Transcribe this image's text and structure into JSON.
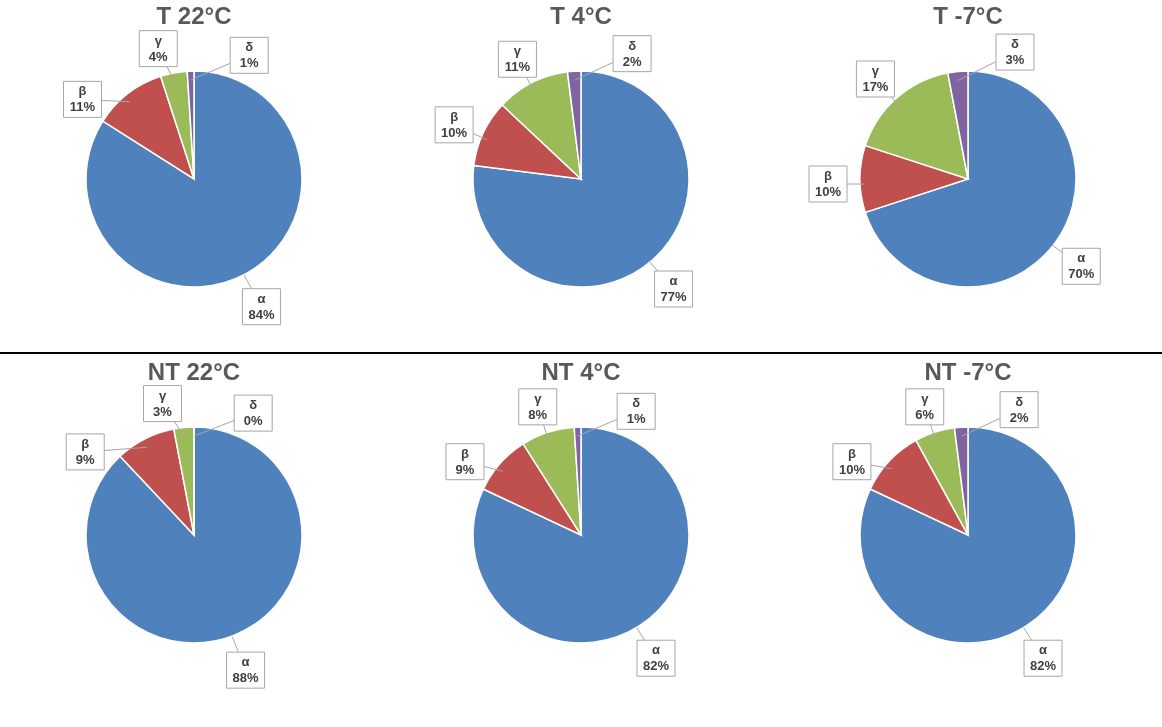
{
  "chart_data": [
    {
      "type": "pie",
      "title": "T 22°C",
      "categories": [
        "α",
        "β",
        "γ",
        "δ"
      ],
      "values": [
        84,
        11,
        4,
        1
      ],
      "value_labels": [
        "84%",
        "11%",
        "4%",
        "1%"
      ],
      "colors": [
        "#4f81bd",
        "#c0504d",
        "#9bbb59",
        "#8064a2"
      ]
    },
    {
      "type": "pie",
      "title": "T 4°C",
      "categories": [
        "α",
        "β",
        "γ",
        "δ"
      ],
      "values": [
        77,
        10,
        11,
        2
      ],
      "value_labels": [
        "77%",
        "10%",
        "11%",
        "2%"
      ],
      "colors": [
        "#4f81bd",
        "#c0504d",
        "#9bbb59",
        "#8064a2"
      ]
    },
    {
      "type": "pie",
      "title": "T -7°C",
      "categories": [
        "α",
        "β",
        "γ",
        "δ"
      ],
      "values": [
        70,
        10,
        17,
        3
      ],
      "value_labels": [
        "70%",
        "10%",
        "17%",
        "3%"
      ],
      "colors": [
        "#4f81bd",
        "#c0504d",
        "#9bbb59",
        "#8064a2"
      ]
    },
    {
      "type": "pie",
      "title": "NT 22°C",
      "categories": [
        "α",
        "β",
        "γ",
        "δ"
      ],
      "values": [
        88,
        9,
        3,
        0
      ],
      "value_labels": [
        "88%",
        "9%",
        "3%",
        "0%"
      ],
      "colors": [
        "#4f81bd",
        "#c0504d",
        "#9bbb59",
        "#8064a2"
      ]
    },
    {
      "type": "pie",
      "title": "NT 4°C",
      "categories": [
        "α",
        "β",
        "γ",
        "δ"
      ],
      "values": [
        82,
        9,
        8,
        1
      ],
      "value_labels": [
        "82%",
        "9%",
        "8%",
        "1%"
      ],
      "colors": [
        "#4f81bd",
        "#c0504d",
        "#9bbb59",
        "#8064a2"
      ]
    },
    {
      "type": "pie",
      "title": "NT -7°C",
      "categories": [
        "α",
        "β",
        "γ",
        "δ"
      ],
      "values": [
        82,
        10,
        6,
        2
      ],
      "value_labels": [
        "82%",
        "10%",
        "6%",
        "2%"
      ],
      "colors": [
        "#4f81bd",
        "#c0504d",
        "#9bbb59",
        "#8064a2"
      ]
    }
  ]
}
